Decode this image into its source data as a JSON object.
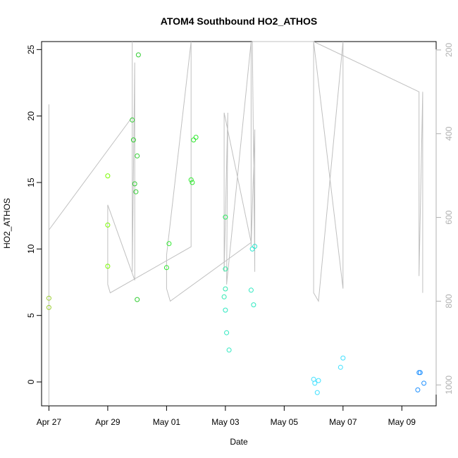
{
  "chart_data": {
    "type": "scatter",
    "title": "ATOM4 Southbound HO2_ATHOS",
    "xlabel": "Date",
    "ylabel": "HO2_ATHOS",
    "x_ticks": [
      "Apr 27",
      "Apr 29",
      "May 01",
      "May 03",
      "May 05",
      "May 07",
      "May 09"
    ],
    "y_ticks": [
      "0",
      "5",
      "10",
      "15",
      "20",
      "25"
    ],
    "y2_ticks": [
      "200",
      "400",
      "600",
      "800",
      "1000"
    ],
    "x_range": [
      "2016-04-26 18:00",
      "2016-05-10 04:00"
    ],
    "ylim": [
      -1.8,
      25.6
    ],
    "y2lim": [
      1050,
      180
    ],
    "y2_reversed": true,
    "y2_axis_color": "#b0b0b0",
    "marker": "open circle",
    "point_color_note": "colored by time (green to cyan to blue)",
    "series": [
      {
        "points": [
          {
            "x": "2016-04-27 00:00",
            "y": 6.3,
            "color": "#9acd32"
          },
          {
            "x": "2016-04-27 00:00",
            "y": 5.6,
            "color": "#9acd32"
          },
          {
            "x": "2016-04-29 00:00",
            "y": 15.5,
            "color": "#7cfc00"
          },
          {
            "x": "2016-04-29 00:00",
            "y": 11.8,
            "color": "#7cfc00"
          },
          {
            "x": "2016-04-29 00:00",
            "y": 8.7,
            "color": "#7cfc00"
          },
          {
            "x": "2016-04-29 20:00",
            "y": 19.7,
            "color": "#32cd32"
          },
          {
            "x": "2016-04-29 21:00",
            "y": 18.2,
            "color": "#32cd32"
          },
          {
            "x": "2016-04-29 22:00",
            "y": 14.9,
            "color": "#32cd32"
          },
          {
            "x": "2016-04-29 23:00",
            "y": 14.3,
            "color": "#32cd32"
          },
          {
            "x": "2016-04-30 00:00",
            "y": 17.0,
            "color": "#32cd32"
          },
          {
            "x": "2016-04-30 01:00",
            "y": 24.6,
            "color": "#32cd32"
          },
          {
            "x": "2016-04-30 00:00",
            "y": 6.2,
            "color": "#32cd32"
          },
          {
            "x": "2016-05-01 00:00",
            "y": 8.6,
            "color": "#2ee82e"
          },
          {
            "x": "2016-05-01 02:00",
            "y": 10.4,
            "color": "#2ee82e"
          },
          {
            "x": "2016-05-01 20:00",
            "y": 15.2,
            "color": "#2ee82e"
          },
          {
            "x": "2016-05-01 21:00",
            "y": 15.0,
            "color": "#2ee82e"
          },
          {
            "x": "2016-05-01 22:00",
            "y": 18.2,
            "color": "#2ee82e"
          },
          {
            "x": "2016-05-02 00:00",
            "y": 18.4,
            "color": "#2ee82e"
          },
          {
            "x": "2016-05-03 00:00",
            "y": 12.4,
            "color": "#2ee860"
          },
          {
            "x": "2016-05-03 00:00",
            "y": 8.5,
            "color": "#2ee8a0"
          },
          {
            "x": "2016-05-03 00:00",
            "y": 7.0,
            "color": "#2ee8b0"
          },
          {
            "x": "2016-05-02 23:00",
            "y": 6.4,
            "color": "#2ee8b0"
          },
          {
            "x": "2016-05-03 00:00",
            "y": 5.4,
            "color": "#2ee8c0"
          },
          {
            "x": "2016-05-03 01:00",
            "y": 3.7,
            "color": "#2ee8c0"
          },
          {
            "x": "2016-05-03 03:00",
            "y": 2.4,
            "color": "#2ee8c0"
          },
          {
            "x": "2016-05-03 22:00",
            "y": 10.0,
            "color": "#2ee8d0"
          },
          {
            "x": "2016-05-04 00:00",
            "y": 10.2,
            "color": "#2ee8d0"
          },
          {
            "x": "2016-05-03 21:00",
            "y": 6.9,
            "color": "#2ee8c0"
          },
          {
            "x": "2016-05-03 23:00",
            "y": 5.8,
            "color": "#2ee8c0"
          },
          {
            "x": "2016-05-06 00:00",
            "y": 0.2,
            "color": "#40e0ff"
          },
          {
            "x": "2016-05-06 01:00",
            "y": -0.1,
            "color": "#40e0ff"
          },
          {
            "x": "2016-05-06 04:00",
            "y": 0.1,
            "color": "#40e0ff"
          },
          {
            "x": "2016-05-06 03:00",
            "y": -0.8,
            "color": "#40e0ff"
          },
          {
            "x": "2016-05-06 22:00",
            "y": 1.1,
            "color": "#40e0ff"
          },
          {
            "x": "2016-05-07 00:00",
            "y": 1.8,
            "color": "#40e0ff"
          },
          {
            "x": "2016-05-09 14:00",
            "y": 0.7,
            "color": "#1e90ff"
          },
          {
            "x": "2016-05-09 15:00",
            "y": 0.7,
            "color": "#1e90ff"
          },
          {
            "x": "2016-05-09 13:00",
            "y": -0.6,
            "color": "#1e90ff"
          },
          {
            "x": "2016-05-09 18:00",
            "y": -0.1,
            "color": "#1e90ff"
          }
        ]
      },
      {
        "axis": "right",
        "color": "#c0c0c0",
        "values": [
          {
            "x": "2016-04-27 00:00",
            "y": 1050
          },
          {
            "x": "2016-04-27 00:00",
            "y": 330
          },
          {
            "x": "2016-04-27 00:00",
            "y": 630
          },
          {
            "x": "2016-04-29 20:00",
            "y": 360
          },
          {
            "x": "2016-04-29 20:00",
            "y": 180
          },
          {
            "x": "2016-04-29 20:00",
            "y": 290
          },
          {
            "x": "2016-04-29 20:00",
            "y": 730
          },
          {
            "x": "2016-04-29 22:00",
            "y": 230
          },
          {
            "x": "2016-04-29 22:00",
            "y": 750
          },
          {
            "x": "2016-04-29 00:00",
            "y": 570
          },
          {
            "x": "2016-04-29 00:00",
            "y": 760
          },
          {
            "x": "2016-04-29 02:00",
            "y": 780
          },
          {
            "x": "2016-05-01 20:00",
            "y": 670
          },
          {
            "x": "2016-05-01 20:00",
            "y": 180
          },
          {
            "x": "2016-05-01 00:00",
            "y": 690
          },
          {
            "x": "2016-05-01 00:00",
            "y": 770
          },
          {
            "x": "2016-05-01 03:00",
            "y": 800
          },
          {
            "x": "2016-05-03 21:00",
            "y": 660
          },
          {
            "x": "2016-05-02 23:00",
            "y": 350
          },
          {
            "x": "2016-05-02 23:00",
            "y": 730
          },
          {
            "x": "2016-05-03 02:00",
            "y": 350
          },
          {
            "x": "2016-05-03 01:00",
            "y": 760
          },
          {
            "x": "2016-05-03 21:00",
            "y": 180
          },
          {
            "x": "2016-05-03 21:00",
            "y": 670
          },
          {
            "x": "2016-05-04 00:00",
            "y": 390
          },
          {
            "x": "2016-05-04 00:00",
            "y": 730
          },
          {
            "x": "2016-05-03 22:00",
            "y": 180
          },
          {
            "x": "2016-05-06 00:00",
            "y": 180
          },
          {
            "x": "2016-05-06 00:00",
            "y": 780
          },
          {
            "x": "2016-05-06 04:00",
            "y": 800
          },
          {
            "x": "2016-05-07 00:00",
            "y": 180
          },
          {
            "x": "2016-05-07 00:00",
            "y": 770
          },
          {
            "x": "2016-05-06 22:00",
            "y": 720
          },
          {
            "x": "2016-05-06 00:00",
            "y": 180
          },
          {
            "x": "2016-05-09 14:00",
            "y": 300
          },
          {
            "x": "2016-05-09 14:00",
            "y": 740
          },
          {
            "x": "2016-05-09 17:00",
            "y": 300
          },
          {
            "x": "2016-05-09 17:00",
            "y": 780
          }
        ]
      }
    ],
    "grid": false,
    "legend": "none"
  }
}
